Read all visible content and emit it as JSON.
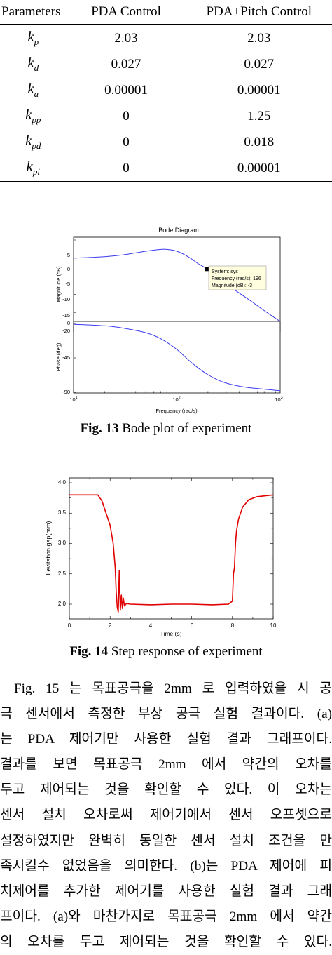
{
  "table": {
    "headers": [
      "Parameters",
      "PDA Control",
      "PDA+Pitch Control"
    ],
    "rows": [
      {
        "sym": "k",
        "sub": "p",
        "pda": "2.03",
        "pitch": "2.03"
      },
      {
        "sym": "k",
        "sub": "d",
        "pda": "0.027",
        "pitch": "0.027"
      },
      {
        "sym": "k",
        "sub": "a",
        "pda": "0.00001",
        "pitch": "0.00001"
      },
      {
        "sym": "k",
        "sub": "pp",
        "pda": "0",
        "pitch": "1.25"
      },
      {
        "sym": "k",
        "sub": "pd",
        "pda": "0",
        "pitch": "0.018"
      },
      {
        "sym": "k",
        "sub": "pi",
        "pda": "0",
        "pitch": "0.00001"
      }
    ]
  },
  "fig13": {
    "caption_label": "Fig. 13",
    "caption_text": " Bode plot of experiment",
    "title": "Bode Diagram",
    "mag_ylabel": "Magnitude (dB)",
    "phase_ylabel": "Phase (deg)",
    "xlabel": "Frequency  (rad/s)",
    "mag_ticks": [
      "5",
      "0",
      "-5",
      "-10",
      "-15",
      "-20"
    ],
    "phase_ticks": [
      "0",
      "-45",
      "-90"
    ],
    "x_tick_base": "10",
    "x_tick_exps": [
      "1",
      "2",
      "3"
    ],
    "datatip": {
      "line1": "System: sys",
      "line2": "Frequency (rad/s): 196",
      "line3": "Magnitude (dB): -3"
    },
    "line_color": "#3a3af0"
  },
  "fig14": {
    "caption_label": "Fig. 14",
    "caption_text": " Step response of experiment",
    "xlabel": "Time (s)",
    "ylabel": "Levitation gap(mm)",
    "x_ticks": [
      "0",
      "2",
      "4",
      "6",
      "8",
      "10"
    ],
    "y_ticks": [
      "2.0",
      "2.5",
      "3.0",
      "3.5",
      "4.0"
    ],
    "line_color": "#e00000"
  },
  "chart_data": [
    {
      "type": "line",
      "title": "Bode Diagram",
      "xscale": "log",
      "xlabel": "Frequency  (rad/s)",
      "xlim": [
        10,
        1000
      ],
      "subplots": [
        {
          "ylabel": "Magnitude (dB)",
          "ylim": [
            -20,
            5
          ],
          "x": [
            10,
            20,
            30,
            50,
            70,
            80,
            100,
            130,
            160,
            196,
            250,
            350,
            500,
            700,
            1000
          ],
          "y": [
            0,
            0.4,
            0.9,
            1.9,
            2.4,
            2.4,
            1.9,
            0.3,
            -1.5,
            -3,
            -5.5,
            -8.5,
            -11.5,
            -14.5,
            -17.5
          ]
        },
        {
          "ylabel": "Phase (deg)",
          "ylim": [
            -90,
            0
          ],
          "x": [
            10,
            20,
            30,
            50,
            70,
            100,
            130,
            160,
            200,
            250,
            300,
            400,
            500,
            700,
            1000
          ],
          "y": [
            -1,
            -3,
            -6,
            -12,
            -20,
            -34,
            -48,
            -58,
            -67,
            -74,
            -78,
            -82,
            -84,
            -86,
            -88
          ]
        }
      ],
      "annotation": "System: sys, Frequency (rad/s): 196, Magnitude (dB): -3"
    },
    {
      "type": "line",
      "xlabel": "Time (s)",
      "ylabel": "Levitation gap(mm)",
      "xlim": [
        0,
        10
      ],
      "ylim": [
        1.85,
        4.1
      ],
      "x": [
        0,
        0.5,
        1.0,
        1.4,
        1.6,
        1.8,
        2.0,
        2.15,
        2.25,
        2.3,
        2.35,
        2.4,
        2.45,
        2.5,
        2.55,
        2.6,
        2.65,
        2.7,
        2.8,
        3.0,
        4.0,
        5.0,
        6.0,
        7.0,
        7.8,
        8.0,
        8.05,
        8.1,
        8.15,
        8.2,
        8.3,
        8.5,
        8.8,
        9.2,
        10.0
      ],
      "y": [
        3.8,
        3.8,
        3.8,
        3.8,
        3.7,
        3.5,
        3.3,
        3.0,
        2.6,
        2.2,
        1.95,
        1.87,
        2.55,
        1.9,
        2.15,
        1.93,
        2.1,
        1.97,
        2.01,
        2.0,
        1.99,
        2.0,
        2.0,
        1.99,
        2.0,
        2.05,
        2.5,
        2.6,
        3.0,
        3.2,
        3.4,
        3.6,
        3.72,
        3.77,
        3.8
      ]
    }
  ],
  "paragraph": {
    "lines": [
      "Fig. 15 는 목표공극을 2mm 로 입력하였을 시 공",
      "극 센서에서 측정한 부상 공극 실험 결과이다. (a)",
      "는 PDA 제어기만 사용한 실험 결과 그래프이다.",
      "결과를 보면 목표공극 2mm 에서 약간의 오차를",
      "두고 제어되는 것을 확인할 수 있다. 이 오차는",
      "센서 설치 오차로써 제어기에서 센서 오프셋으로",
      "설정하였지만 완벽히 동일한 센서 설치 조건을 만",
      "족시킬수 없었음을 의미한다. (b)는 PDA 제어에 피",
      "치제어를 추가한 제어기를 사용한 실험 결과 그래",
      "프이다. (a)와 마찬가지로 목표공극 2mm 에서 약간",
      "의 오차를 두고 제어되는 것을 확인할 수 있다."
    ]
  }
}
